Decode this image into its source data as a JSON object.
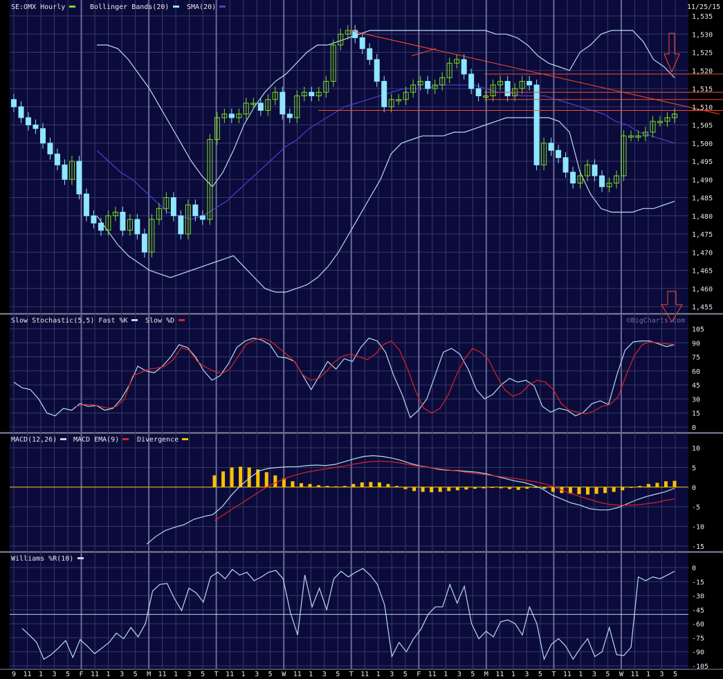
{
  "date": "11/25/15",
  "watermark": "©BigCharts.com",
  "colors": {
    "bg": "#0b0b3b",
    "grid": "#38386a",
    "sep": "#8a8aa8",
    "up": "#7ddc1f",
    "down": "#8ee6ff",
    "sma": "#4b3fd9",
    "band": "#b8dcf0",
    "trend": "#ff4a2a",
    "macd": "#b8dcf0",
    "signal": "#dd2222",
    "div": "#ffc000",
    "wr": "#b8dcf0"
  },
  "legends": {
    "price": [
      {
        "text": "SE:OMX Hourly",
        "swatch": "#7ddc1f"
      },
      {
        "text": "Bollinger Bands(20)",
        "swatch": "#8ee6ff"
      },
      {
        "text": "SMA(20)",
        "swatch": "#4b3fd9"
      }
    ],
    "stoch": [
      {
        "text": "Slow Stochastic(5,5) Fast %K",
        "swatch": "#b8dcf0"
      },
      {
        "text": "Slow %D",
        "swatch": "#dd2222"
      }
    ],
    "macd": [
      {
        "text": "MACD(12,26)",
        "swatch": "#b8dcf0"
      },
      {
        "text": "MACD EMA(9)",
        "swatch": "#dd2222"
      },
      {
        "text": "Divergence",
        "swatch": "#ffc000"
      }
    ],
    "wr": [
      {
        "text": "Williams %R(10)",
        "swatch": "#b8dcf0"
      }
    ]
  },
  "x_labels": [
    "9",
    "11",
    "1",
    "3",
    "5",
    "F",
    "11",
    "1",
    "3",
    "5",
    "M",
    "11",
    "1",
    "3",
    "5",
    "T",
    "11",
    "1",
    "3",
    "5",
    "W",
    "11",
    "1",
    "3",
    "5",
    "T",
    "11",
    "1",
    "3",
    "5",
    "F",
    "11",
    "1",
    "3",
    "5",
    "M",
    "11",
    "1",
    "3",
    "5",
    "T",
    "11",
    "1",
    "3",
    "5",
    "W",
    "11",
    "1",
    "3",
    "5"
  ],
  "chart_data": [
    {
      "type": "candlestick",
      "panel": "price",
      "title": "SE:OMX Hourly",
      "ylim": [
        1455,
        1535
      ],
      "y_ticks": [
        "1,535",
        "1,530",
        "1,525",
        "1,520",
        "1,515",
        "1,510",
        "1,505",
        "1,500",
        "1,495",
        "1,490",
        "1,485",
        "1,480",
        "1,475",
        "1,470",
        "1,465",
        "1,460",
        "1,455"
      ],
      "close": [
        1510,
        1507,
        1505,
        1504,
        1500,
        1497,
        1494,
        1490,
        1495,
        1486,
        1480,
        1478,
        1476,
        1480,
        1481,
        1476,
        1479,
        1475,
        1470,
        1479,
        1482,
        1485,
        1480,
        1475,
        1483,
        1480,
        1479,
        1501,
        1507,
        1508,
        1507,
        1508,
        1511,
        1511,
        1509,
        1512,
        1514,
        1508,
        1507,
        1513,
        1514,
        1513,
        1514,
        1517,
        1527,
        1530,
        1531,
        1529,
        1526,
        1523,
        1517,
        1510,
        1512,
        1512,
        1514,
        1516,
        1517,
        1515,
        1516,
        1518,
        1522,
        1523,
        1519,
        1515,
        1513,
        1513,
        1516,
        1517,
        1513,
        1515,
        1517,
        1516,
        1494,
        1500,
        1498,
        1496,
        1492,
        1489,
        1491,
        1494,
        1491,
        1488,
        1489,
        1491,
        1502,
        1502,
        1502,
        1503,
        1506,
        1506,
        1507,
        1508
      ],
      "bollinger_upper": [
        1527,
        1527,
        1526,
        1523,
        1519,
        1515,
        1510,
        1505,
        1500,
        1495,
        1491,
        1488,
        1492,
        1498,
        1505,
        1510,
        1514,
        1517,
        1519,
        1522,
        1525,
        1527,
        1527,
        1528,
        1529,
        1530,
        1531,
        1531,
        1531,
        1531,
        1531,
        1531,
        1531,
        1531,
        1531,
        1531,
        1531,
        1531,
        1530,
        1530,
        1529,
        1527,
        1524,
        1522,
        1521,
        1520,
        1525,
        1527,
        1530,
        1531,
        1531,
        1531,
        1528,
        1523,
        1521,
        1518
      ],
      "bollinger_lower": [
        1480,
        1476,
        1472,
        1469,
        1467,
        1465,
        1464,
        1463,
        1464,
        1465,
        1466,
        1467,
        1468,
        1469,
        1466,
        1463,
        1460,
        1459,
        1459,
        1460,
        1461,
        1463,
        1466,
        1470,
        1475,
        1480,
        1485,
        1490,
        1497,
        1500,
        1501,
        1502,
        1502,
        1502,
        1503,
        1503,
        1504,
        1505,
        1506,
        1507,
        1507,
        1507,
        1507,
        1507,
        1506,
        1503,
        1492,
        1486,
        1482,
        1481,
        1481,
        1481,
        1482,
        1482,
        1483,
        1484
      ],
      "sma20": [
        1498,
        1495,
        1492,
        1490,
        1487,
        1484,
        1481,
        1480,
        1479,
        1480,
        1482,
        1484,
        1487,
        1490,
        1493,
        1496,
        1499,
        1501,
        1504,
        1506,
        1508,
        1510,
        1511,
        1512,
        1513,
        1514,
        1515,
        1515,
        1515,
        1516,
        1516,
        1516,
        1516,
        1515,
        1514,
        1514,
        1513,
        1513,
        1513,
        1512,
        1511,
        1510,
        1509,
        1508,
        1506,
        1505,
        1503,
        1502,
        1501,
        1500
      ]
    },
    {
      "type": "line",
      "panel": "stochastic",
      "title": "Slow Stochastic(5,5)",
      "ylim": [
        0,
        105
      ],
      "y_ticks": [
        "105",
        "90",
        "75",
        "60",
        "45",
        "30",
        "15",
        "0"
      ],
      "series": [
        {
          "name": "Fast %K",
          "values": [
            48,
            42,
            40,
            30,
            15,
            12,
            20,
            18,
            25,
            22,
            23,
            18,
            20,
            30,
            45,
            65,
            60,
            58,
            65,
            75,
            88,
            85,
            75,
            60,
            50,
            55,
            68,
            85,
            92,
            95,
            93,
            88,
            75,
            74,
            70,
            55,
            40,
            55,
            70,
            62,
            73,
            70,
            85,
            95,
            92,
            80,
            55,
            35,
            10,
            18,
            30,
            55,
            80,
            84,
            78,
            62,
            40,
            30,
            35,
            45,
            52,
            48,
            50,
            44,
            22,
            16,
            20,
            18,
            12,
            16,
            25,
            28,
            24,
            55,
            82,
            91,
            92,
            92,
            89,
            86,
            88
          ]
        },
        {
          "name": "Slow %D",
          "values": [
            22,
            24,
            24,
            22,
            20,
            22,
            30,
            55,
            58,
            62,
            63,
            65,
            72,
            85,
            82,
            70,
            64,
            60,
            57,
            62,
            75,
            88,
            93,
            95,
            92,
            85,
            78,
            70,
            56,
            50,
            52,
            60,
            70,
            76,
            78,
            75,
            72,
            78,
            88,
            92,
            82,
            62,
            38,
            20,
            15,
            20,
            34,
            55,
            72,
            84,
            80,
            72,
            55,
            40,
            33,
            36,
            45,
            50,
            48,
            40,
            25,
            18,
            16,
            14,
            17,
            22,
            24,
            32,
            55,
            76,
            88,
            91,
            90,
            89,
            88
          ]
        }
      ]
    },
    {
      "type": "bar+line",
      "panel": "macd",
      "title": "MACD(12,26)",
      "ylim": [
        -15,
        10
      ],
      "y_ticks": [
        "10",
        "5",
        "0",
        "-5",
        "-10",
        "-15"
      ],
      "series": [
        {
          "name": "MACD",
          "values": [
            -14.5,
            -12.5,
            -11,
            -10.2,
            -9.5,
            -8.2,
            -7.5,
            -7,
            -5,
            -2,
            0.5,
            2.5,
            4.2,
            4.8,
            5,
            5.2,
            5.2,
            5.5,
            5.6,
            5.5,
            5.8,
            6.5,
            7.2,
            7.8,
            8,
            7.8,
            7.4,
            6.8,
            6,
            5.4,
            5,
            4.5,
            4.3,
            4.2,
            4,
            3.8,
            3.4,
            2.8,
            2.2,
            1.6,
            1.2,
            0.5,
            -0.5,
            -2,
            -3,
            -4,
            -4.6,
            -5.5,
            -5.8,
            -5.8,
            -5.2,
            -4.2,
            -3.2,
            -2.4,
            -1.8,
            -1.2,
            -0.3
          ]
        },
        {
          "name": "MACD EMA",
          "values": [
            -8.5,
            -7,
            -5.5,
            -4,
            -2.5,
            -1,
            0.5,
            1.5,
            2.5,
            3.2,
            3.8,
            4.2,
            4.6,
            5,
            5.3,
            5.8,
            6.2,
            6.5,
            6.6,
            6.5,
            6.2,
            5.8,
            5.4,
            5.1,
            4.8,
            4.5,
            4.2,
            3.9,
            3.6,
            3.3,
            3,
            2.7,
            2.4,
            2.1,
            1.7,
            1.3,
            0.8,
            0,
            -1,
            -1.8,
            -2.6,
            -3.3,
            -4,
            -4.4,
            -4.6,
            -4.6,
            -4.5,
            -4.2,
            -3.9,
            -3.4,
            -3
          ]
        },
        {
          "name": "Divergence",
          "values": [
            3,
            4,
            5,
            5.2,
            5,
            4.5,
            3.8,
            3,
            2.2,
            1.5,
            1,
            0.8,
            0.5,
            0.3,
            0.2,
            0.3,
            0.8,
            1.2,
            1.3,
            1.2,
            0.8,
            0.3,
            -0.5,
            -1,
            -1.2,
            -1.3,
            -1.2,
            -1,
            -0.8,
            -0.6,
            -0.4,
            -0.3,
            -0.2,
            -0.3,
            -0.5,
            -0.7,
            -0.4,
            -0.2,
            -0.4,
            -1.2,
            -1.5,
            -1.7,
            -1.8,
            -1.9,
            -1.7,
            -1.5,
            -1.2,
            -0.8,
            0,
            0.3,
            0.8,
            1.1,
            1.5,
            1.6
          ]
        }
      ]
    },
    {
      "type": "line",
      "panel": "williams",
      "title": "Williams %R(10)",
      "ylim": [
        -105,
        0
      ],
      "y_ticks": [
        "0",
        "-15",
        "-30",
        "-45",
        "-60",
        "-75",
        "-90",
        "-105"
      ],
      "reference_line": -50,
      "series": [
        {
          "name": "Williams %R",
          "values": [
            -65,
            -72,
            -80,
            -98,
            -93,
            -86,
            -78,
            -96,
            -77,
            -84,
            -92,
            -86,
            -80,
            -70,
            -76,
            -64,
            -74,
            -60,
            -25,
            -18,
            -17,
            -33,
            -46,
            -22,
            -27,
            -37,
            -10,
            -5,
            -12,
            -2,
            -8,
            -5,
            -14,
            -10,
            -5,
            -3,
            -12,
            -48,
            -72,
            -8,
            -42,
            -22,
            -45,
            -12,
            -4,
            -10,
            -5,
            -1,
            -8,
            -18,
            -40,
            -95,
            -80,
            -90,
            -76,
            -66,
            -50,
            -42,
            -42,
            -18,
            -38,
            -20,
            -60,
            -76,
            -68,
            -74,
            -58,
            -56,
            -60,
            -72,
            -42,
            -60,
            -98,
            -82,
            -76,
            -84,
            -98,
            -86,
            -76,
            -95,
            -90,
            -64,
            -93,
            -94,
            -85,
            -10,
            -14,
            -10,
            -12,
            -8,
            -4
          ]
        }
      ]
    }
  ]
}
